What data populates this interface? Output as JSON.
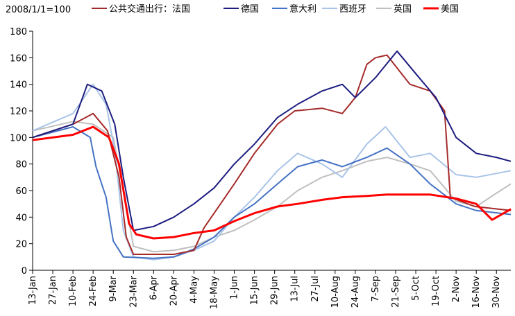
{
  "chart_data": {
    "type": "line",
    "unit_label": "2008/1/1=100",
    "title": "",
    "xlabel": "",
    "ylabel": "",
    "ylim": [
      0,
      180
    ],
    "yticks": [
      0,
      20,
      40,
      60,
      80,
      100,
      120,
      140,
      160,
      180
    ],
    "x_ticks": [
      "13-Jan",
      "27-Jan",
      "10-Feb",
      "24-Feb",
      "9-Mar",
      "23-Mar",
      "6-Apr",
      "20-Apr",
      "4-May",
      "18-May",
      "1-Jun",
      "15-Jun",
      "29-Jun",
      "13-Jul",
      "27-Jul",
      "10-Aug",
      "24-Aug",
      "7-Sep",
      "21-Sep",
      "5-Oct",
      "19-Oct",
      "2-Nov",
      "16-Nov",
      "30-Nov"
    ],
    "x_start": "2020-01-13",
    "x_end": "2020-12-10",
    "grid": false,
    "legend_position": "top",
    "series": [
      {
        "name": "公共交通出行：法国",
        "color": "#A52A2A",
        "points": [
          [
            "2020-01-13",
            100
          ],
          [
            "2020-02-10",
            110
          ],
          [
            "2020-02-24",
            118
          ],
          [
            "2020-03-05",
            105
          ],
          [
            "2020-03-13",
            70
          ],
          [
            "2020-03-18",
            25
          ],
          [
            "2020-03-23",
            12
          ],
          [
            "2020-04-20",
            12
          ],
          [
            "2020-05-04",
            15
          ],
          [
            "2020-05-11",
            32
          ],
          [
            "2020-06-01",
            65
          ],
          [
            "2020-06-15",
            88
          ],
          [
            "2020-07-01",
            110
          ],
          [
            "2020-07-13",
            120
          ],
          [
            "2020-08-01",
            122
          ],
          [
            "2020-08-15",
            118
          ],
          [
            "2020-08-24",
            130
          ],
          [
            "2020-09-01",
            155
          ],
          [
            "2020-09-07",
            160
          ],
          [
            "2020-09-15",
            162
          ],
          [
            "2020-10-01",
            140
          ],
          [
            "2020-10-15",
            135
          ],
          [
            "2020-10-25",
            120
          ],
          [
            "2020-10-29",
            55
          ],
          [
            "2020-11-15",
            48
          ],
          [
            "2020-12-10",
            45
          ]
        ]
      },
      {
        "name": "德国",
        "color": "#1C1C80",
        "points": [
          [
            "2020-01-13",
            100
          ],
          [
            "2020-02-10",
            110
          ],
          [
            "2020-02-20",
            140
          ],
          [
            "2020-03-01",
            135
          ],
          [
            "2020-03-10",
            110
          ],
          [
            "2020-03-16",
            70
          ],
          [
            "2020-03-23",
            30
          ],
          [
            "2020-04-06",
            33
          ],
          [
            "2020-04-20",
            40
          ],
          [
            "2020-05-04",
            50
          ],
          [
            "2020-05-18",
            62
          ],
          [
            "2020-06-01",
            80
          ],
          [
            "2020-06-15",
            95
          ],
          [
            "2020-07-01",
            115
          ],
          [
            "2020-07-15",
            125
          ],
          [
            "2020-08-01",
            135
          ],
          [
            "2020-08-15",
            140
          ],
          [
            "2020-08-24",
            130
          ],
          [
            "2020-09-07",
            145
          ],
          [
            "2020-09-22",
            165
          ],
          [
            "2020-10-05",
            148
          ],
          [
            "2020-10-19",
            130
          ],
          [
            "2020-11-02",
            100
          ],
          [
            "2020-11-16",
            88
          ],
          [
            "2020-11-30",
            85
          ],
          [
            "2020-12-10",
            82
          ]
        ]
      },
      {
        "name": "意大利",
        "color": "#4472C4",
        "points": [
          [
            "2020-01-13",
            100
          ],
          [
            "2020-02-10",
            108
          ],
          [
            "2020-02-22",
            100
          ],
          [
            "2020-02-26",
            78
          ],
          [
            "2020-03-04",
            55
          ],
          [
            "2020-03-09",
            22
          ],
          [
            "2020-03-16",
            10
          ],
          [
            "2020-04-06",
            9
          ],
          [
            "2020-04-20",
            10
          ],
          [
            "2020-05-04",
            16
          ],
          [
            "2020-05-18",
            25
          ],
          [
            "2020-06-01",
            40
          ],
          [
            "2020-06-15",
            50
          ],
          [
            "2020-07-01",
            65
          ],
          [
            "2020-07-15",
            78
          ],
          [
            "2020-08-01",
            83
          ],
          [
            "2020-08-15",
            78
          ],
          [
            "2020-09-01",
            85
          ],
          [
            "2020-09-15",
            92
          ],
          [
            "2020-10-01",
            80
          ],
          [
            "2020-10-15",
            65
          ],
          [
            "2020-11-02",
            50
          ],
          [
            "2020-11-16",
            45
          ],
          [
            "2020-12-10",
            42
          ]
        ]
      },
      {
        "name": "西班牙",
        "color": "#A9C4E8",
        "points": [
          [
            "2020-01-13",
            105
          ],
          [
            "2020-02-10",
            118
          ],
          [
            "2020-02-24",
            140
          ],
          [
            "2020-03-04",
            125
          ],
          [
            "2020-03-10",
            90
          ],
          [
            "2020-03-16",
            30
          ],
          [
            "2020-03-23",
            10
          ],
          [
            "2020-04-06",
            8
          ],
          [
            "2020-04-20",
            10
          ],
          [
            "2020-05-04",
            15
          ],
          [
            "2020-05-18",
            22
          ],
          [
            "2020-06-01",
            40
          ],
          [
            "2020-06-15",
            55
          ],
          [
            "2020-07-01",
            75
          ],
          [
            "2020-07-15",
            88
          ],
          [
            "2020-08-01",
            80
          ],
          [
            "2020-08-15",
            70
          ],
          [
            "2020-09-01",
            95
          ],
          [
            "2020-09-14",
            108
          ],
          [
            "2020-10-01",
            85
          ],
          [
            "2020-10-15",
            88
          ],
          [
            "2020-11-02",
            72
          ],
          [
            "2020-11-16",
            70
          ],
          [
            "2020-12-10",
            75
          ]
        ]
      },
      {
        "name": "英国",
        "color": "#BFBFBF",
        "points": [
          [
            "2020-01-13",
            105
          ],
          [
            "2020-02-10",
            112
          ],
          [
            "2020-02-24",
            110
          ],
          [
            "2020-03-09",
            100
          ],
          [
            "2020-03-16",
            60
          ],
          [
            "2020-03-23",
            18
          ],
          [
            "2020-04-06",
            14
          ],
          [
            "2020-04-20",
            15
          ],
          [
            "2020-05-04",
            18
          ],
          [
            "2020-05-18",
            25
          ],
          [
            "2020-06-01",
            30
          ],
          [
            "2020-06-15",
            38
          ],
          [
            "2020-07-01",
            48
          ],
          [
            "2020-07-15",
            60
          ],
          [
            "2020-08-01",
            70
          ],
          [
            "2020-08-15",
            75
          ],
          [
            "2020-09-01",
            82
          ],
          [
            "2020-09-15",
            85
          ],
          [
            "2020-10-01",
            80
          ],
          [
            "2020-10-15",
            75
          ],
          [
            "2020-11-02",
            52
          ],
          [
            "2020-11-16",
            48
          ],
          [
            "2020-11-30",
            58
          ],
          [
            "2020-12-10",
            65
          ]
        ]
      },
      {
        "name": "美国",
        "color": "#FF0000",
        "points": [
          [
            "2020-01-13",
            98
          ],
          [
            "2020-02-10",
            102
          ],
          [
            "2020-02-24",
            108
          ],
          [
            "2020-03-06",
            100
          ],
          [
            "2020-03-13",
            80
          ],
          [
            "2020-03-20",
            35
          ],
          [
            "2020-03-25",
            27
          ],
          [
            "2020-04-06",
            24
          ],
          [
            "2020-04-20",
            25
          ],
          [
            "2020-05-04",
            28
          ],
          [
            "2020-05-18",
            30
          ],
          [
            "2020-06-01",
            37
          ],
          [
            "2020-06-15",
            43
          ],
          [
            "2020-07-01",
            48
          ],
          [
            "2020-07-15",
            50
          ],
          [
            "2020-08-01",
            53
          ],
          [
            "2020-08-15",
            55
          ],
          [
            "2020-09-01",
            56
          ],
          [
            "2020-09-15",
            57
          ],
          [
            "2020-10-01",
            57
          ],
          [
            "2020-10-15",
            57
          ],
          [
            "2020-11-02",
            54
          ],
          [
            "2020-11-16",
            50
          ],
          [
            "2020-11-27",
            38
          ],
          [
            "2020-12-10",
            46
          ]
        ]
      }
    ]
  }
}
